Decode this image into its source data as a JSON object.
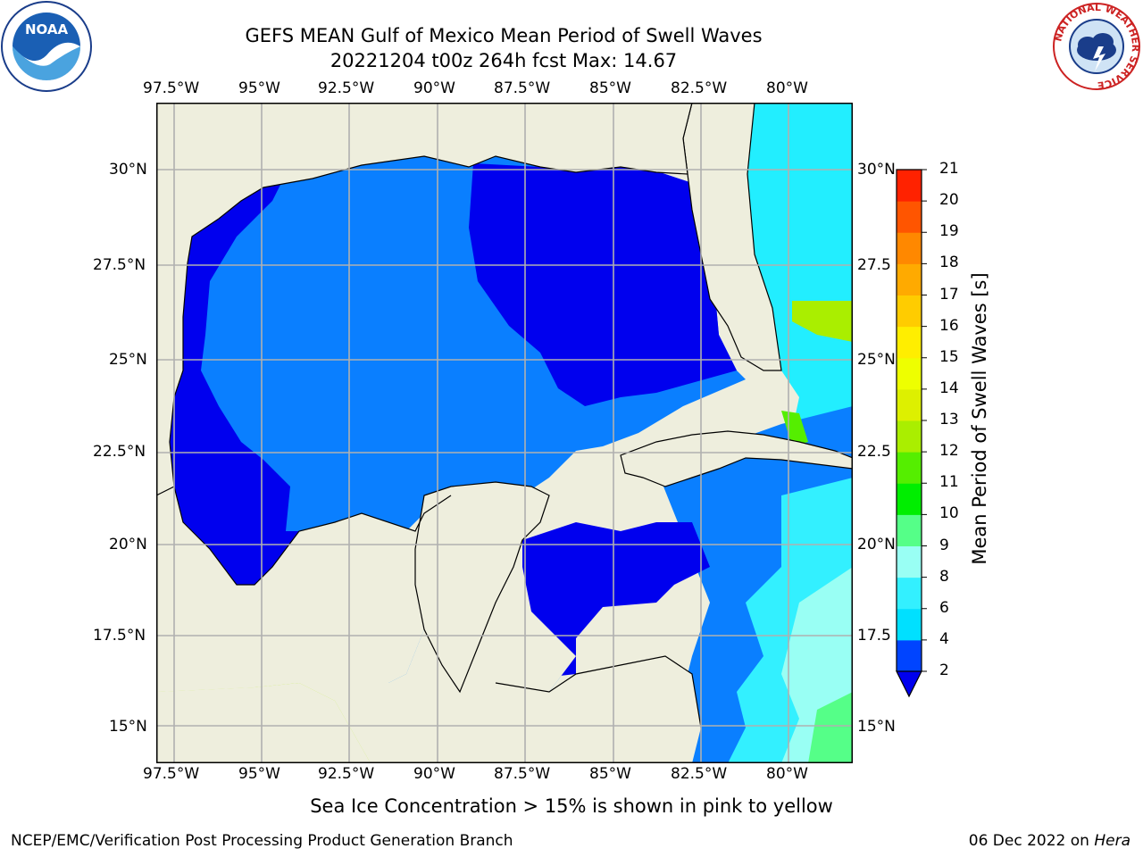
{
  "header": {
    "title_line1": "GEFS MEAN Gulf of Mexico Mean Period of Swell Waves",
    "title_line2": "20221204 t00z 264h fcst   Max: 14.67"
  },
  "map": {
    "lon_labels": [
      "97.5°W",
      "95°W",
      "92.5°W",
      "90°W",
      "87.5°W",
      "85°W",
      "82.5°W",
      "80°W"
    ],
    "lat_labels": [
      "30°N",
      "27.5°N",
      "25°N",
      "22.5°N",
      "20°N",
      "17.5°N",
      "15°N"
    ],
    "right_lat_labels": [
      "30°N",
      "27.5",
      "25°N",
      "22.5",
      "20°N",
      "17.5",
      "15°N"
    ],
    "land_color": "#eeeedd",
    "grid": true
  },
  "colorbar": {
    "label": "Mean Period of Swell Waves [s]",
    "ticks": [
      "2",
      "4",
      "6",
      "8",
      "9",
      "10",
      "11",
      "12",
      "13",
      "14",
      "15",
      "16",
      "17",
      "18",
      "19",
      "20",
      "21"
    ],
    "colors": [
      "#0044ff",
      "#00e0ff",
      "#33f0ff",
      "#99fff4",
      "#55ff88",
      "#00ee00",
      "#55ee00",
      "#aaee00",
      "#ddf000",
      "#eeff00",
      "#ffee00",
      "#ffcc00",
      "#ffaa00",
      "#ff8800",
      "#ff5500",
      "#ff2200"
    ],
    "extend": "min"
  },
  "notes": {
    "ice_note": "Sea Ice Concentration > 15% is shown in pink to yellow"
  },
  "footer": {
    "left": "NCEP/EMC/Verification Post Processing Product Generation Branch",
    "right_date": "06 Dec 2022 on ",
    "right_host": "Hera"
  },
  "logos": {
    "noaa": "NOAA",
    "nws_ring": "NATIONAL WEATHER SERVICE"
  }
}
